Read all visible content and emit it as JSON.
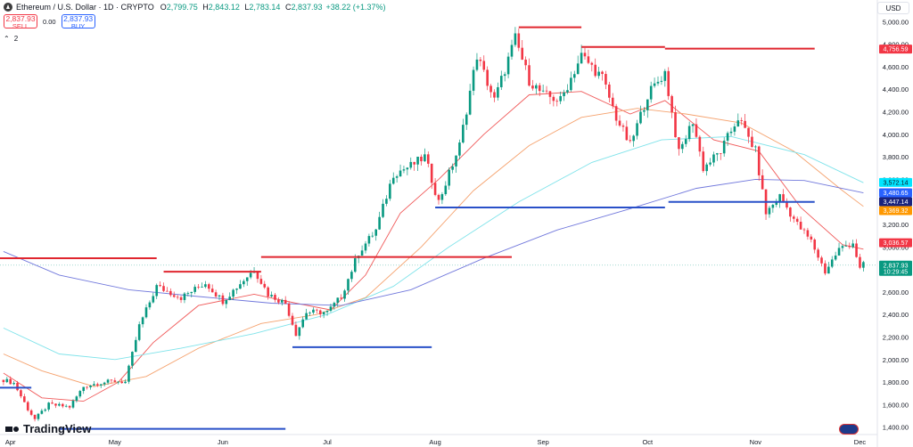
{
  "header": {
    "title": "Ethereum / U.S. Dollar · 1D · CRYPTO",
    "ohlc": [
      {
        "k": "O",
        "v": "2,799.75"
      },
      {
        "k": "H",
        "v": "2,843.12"
      },
      {
        "k": "L",
        "v": "2,783.14"
      },
      {
        "k": "C",
        "v": "2,837.93"
      }
    ],
    "change": "+38.22 (+1.37%)",
    "sell_price": "2,837.93",
    "sell_label": "SELL",
    "spread": "0.00",
    "buy_price": "2,837.93",
    "buy_label": "BUY",
    "indicators_count": "2",
    "currency": "USD"
  },
  "brand": "TradingView",
  "colors": {
    "up": "#089981",
    "down": "#f23645",
    "resistance": "#e0262f",
    "support": "#2950c8",
    "ma_red": "#f05a5a",
    "ma_orange": "#f5a26e",
    "ma_cyan": "#7fe3ea",
    "ma_blue": "#7178dc"
  },
  "chart_data": {
    "type": "candlestick",
    "symbol": "ETHUSD",
    "interval": "1D",
    "x_axis_labels": [
      "Apr",
      "May",
      "Jun",
      "Jul",
      "Aug",
      "Sep",
      "Oct",
      "Nov",
      "Dec"
    ],
    "y_axis_labels": [
      "1,400.00",
      "1,600.00",
      "1,800.00",
      "2,000.00",
      "2,200.00",
      "2,400.00",
      "2,600.00",
      "2,800.00",
      "3,000.00",
      "3,200.00",
      "3,400.00",
      "3,600.00",
      "3,800.00",
      "4,000.00",
      "4,200.00",
      "4,400.00",
      "4,600.00",
      "4,800.00",
      "5,000.00"
    ],
    "ylim": [
      1350,
      5050
    ],
    "close_path": [
      {
        "date": "2025-03-30",
        "close": 1820
      },
      {
        "date": "2025-04-02",
        "close": 1790
      },
      {
        "date": "2025-04-06",
        "close": 1560
      },
      {
        "date": "2025-04-08",
        "close": 1470
      },
      {
        "date": "2025-04-12",
        "close": 1600
      },
      {
        "date": "2025-04-18",
        "close": 1580
      },
      {
        "date": "2025-04-22",
        "close": 1760
      },
      {
        "date": "2025-04-26",
        "close": 1790
      },
      {
        "date": "2025-05-01",
        "close": 1810
      },
      {
        "date": "2025-05-04",
        "close": 1800
      },
      {
        "date": "2025-05-08",
        "close": 2300
      },
      {
        "date": "2025-05-13",
        "close": 2650
      },
      {
        "date": "2025-05-20",
        "close": 2550
      },
      {
        "date": "2025-05-27",
        "close": 2680
      },
      {
        "date": "2025-06-01",
        "close": 2520
      },
      {
        "date": "2025-06-10",
        "close": 2800
      },
      {
        "date": "2025-06-14",
        "close": 2580
      },
      {
        "date": "2025-06-19",
        "close": 2500
      },
      {
        "date": "2025-06-22",
        "close": 2230
      },
      {
        "date": "2025-06-25",
        "close": 2420
      },
      {
        "date": "2025-07-01",
        "close": 2420
      },
      {
        "date": "2025-07-05",
        "close": 2560
      },
      {
        "date": "2025-07-10",
        "close": 2950
      },
      {
        "date": "2025-07-15",
        "close": 3150
      },
      {
        "date": "2025-07-20",
        "close": 3650
      },
      {
        "date": "2025-07-25",
        "close": 3720
      },
      {
        "date": "2025-07-29",
        "close": 3800
      },
      {
        "date": "2025-08-02",
        "close": 3400
      },
      {
        "date": "2025-08-08",
        "close": 3900
      },
      {
        "date": "2025-08-13",
        "close": 4700
      },
      {
        "date": "2025-08-18",
        "close": 4300
      },
      {
        "date": "2025-08-24",
        "close": 4850
      },
      {
        "date": "2025-08-28",
        "close": 4480
      },
      {
        "date": "2025-09-01",
        "close": 4350
      },
      {
        "date": "2025-09-06",
        "close": 4300
      },
      {
        "date": "2025-09-12",
        "close": 4700
      },
      {
        "date": "2025-09-18",
        "close": 4500
      },
      {
        "date": "2025-09-22",
        "close": 4150
      },
      {
        "date": "2025-09-26",
        "close": 3900
      },
      {
        "date": "2025-10-01",
        "close": 4350
      },
      {
        "date": "2025-10-06",
        "close": 4550
      },
      {
        "date": "2025-10-10",
        "close": 3830
      },
      {
        "date": "2025-10-14",
        "close": 4120
      },
      {
        "date": "2025-10-17",
        "close": 3700
      },
      {
        "date": "2025-10-22",
        "close": 3850
      },
      {
        "date": "2025-10-27",
        "close": 4150
      },
      {
        "date": "2025-11-01",
        "close": 3850
      },
      {
        "date": "2025-11-04",
        "close": 3300
      },
      {
        "date": "2025-11-08",
        "close": 3450
      },
      {
        "date": "2025-11-13",
        "close": 3200
      },
      {
        "date": "2025-11-17",
        "close": 3050
      },
      {
        "date": "2025-11-21",
        "close": 2780
      },
      {
        "date": "2025-11-25",
        "close": 2980
      },
      {
        "date": "2025-11-29",
        "close": 3040
      },
      {
        "date": "2025-12-01",
        "close": 2800
      },
      {
        "date": "2025-12-02",
        "close": 2838
      }
    ],
    "moving_averages": [
      {
        "color": "#f05a5a",
        "points": [
          {
            "date": "2025-03-30",
            "value": 1880
          },
          {
            "date": "2025-04-10",
            "value": 1660
          },
          {
            "date": "2025-04-22",
            "value": 1630
          },
          {
            "date": "2025-05-02",
            "value": 1800
          },
          {
            "date": "2025-05-12",
            "value": 2150
          },
          {
            "date": "2025-05-25",
            "value": 2480
          },
          {
            "date": "2025-06-10",
            "value": 2580
          },
          {
            "date": "2025-06-22",
            "value": 2500
          },
          {
            "date": "2025-07-02",
            "value": 2440
          },
          {
            "date": "2025-07-12",
            "value": 2750
          },
          {
            "date": "2025-07-22",
            "value": 3300
          },
          {
            "date": "2025-08-02",
            "value": 3600
          },
          {
            "date": "2025-08-15",
            "value": 4000
          },
          {
            "date": "2025-08-28",
            "value": 4350
          },
          {
            "date": "2025-09-12",
            "value": 4380
          },
          {
            "date": "2025-09-26",
            "value": 4180
          },
          {
            "date": "2025-10-06",
            "value": 4300
          },
          {
            "date": "2025-10-20",
            "value": 3950
          },
          {
            "date": "2025-11-02",
            "value": 3850
          },
          {
            "date": "2025-11-14",
            "value": 3350
          },
          {
            "date": "2025-11-26",
            "value": 3020
          },
          {
            "date": "2025-12-02",
            "value": 2980
          }
        ]
      },
      {
        "color": "#f5a26e",
        "points": [
          {
            "date": "2025-03-30",
            "value": 2050
          },
          {
            "date": "2025-04-10",
            "value": 1900
          },
          {
            "date": "2025-04-25",
            "value": 1760
          },
          {
            "date": "2025-05-10",
            "value": 1850
          },
          {
            "date": "2025-05-25",
            "value": 2100
          },
          {
            "date": "2025-06-12",
            "value": 2320
          },
          {
            "date": "2025-06-28",
            "value": 2400
          },
          {
            "date": "2025-07-12",
            "value": 2550
          },
          {
            "date": "2025-07-28",
            "value": 3000
          },
          {
            "date": "2025-08-12",
            "value": 3500
          },
          {
            "date": "2025-08-28",
            "value": 3900
          },
          {
            "date": "2025-09-12",
            "value": 4150
          },
          {
            "date": "2025-09-28",
            "value": 4230
          },
          {
            "date": "2025-10-12",
            "value": 4180
          },
          {
            "date": "2025-10-28",
            "value": 4100
          },
          {
            "date": "2025-11-12",
            "value": 3850
          },
          {
            "date": "2025-11-26",
            "value": 3500
          },
          {
            "date": "2025-12-02",
            "value": 3360
          }
        ]
      },
      {
        "color": "#7fe3ea",
        "points": [
          {
            "date": "2025-03-30",
            "value": 2280
          },
          {
            "date": "2025-04-15",
            "value": 2050
          },
          {
            "date": "2025-05-01",
            "value": 2000
          },
          {
            "date": "2025-05-20",
            "value": 2100
          },
          {
            "date": "2025-06-10",
            "value": 2230
          },
          {
            "date": "2025-07-01",
            "value": 2400
          },
          {
            "date": "2025-07-20",
            "value": 2650
          },
          {
            "date": "2025-08-05",
            "value": 3000
          },
          {
            "date": "2025-08-25",
            "value": 3400
          },
          {
            "date": "2025-09-15",
            "value": 3750
          },
          {
            "date": "2025-10-05",
            "value": 3950
          },
          {
            "date": "2025-10-25",
            "value": 3980
          },
          {
            "date": "2025-11-15",
            "value": 3820
          },
          {
            "date": "2025-12-02",
            "value": 3570
          }
        ]
      },
      {
        "color": "#7178dc",
        "points": [
          {
            "date": "2025-03-30",
            "value": 2960
          },
          {
            "date": "2025-04-15",
            "value": 2750
          },
          {
            "date": "2025-05-05",
            "value": 2620
          },
          {
            "date": "2025-05-25",
            "value": 2560
          },
          {
            "date": "2025-06-15",
            "value": 2500
          },
          {
            "date": "2025-07-05",
            "value": 2480
          },
          {
            "date": "2025-07-25",
            "value": 2620
          },
          {
            "date": "2025-08-15",
            "value": 2900
          },
          {
            "date": "2025-09-05",
            "value": 3150
          },
          {
            "date": "2025-09-25",
            "value": 3330
          },
          {
            "date": "2025-10-15",
            "value": 3520
          },
          {
            "date": "2025-11-01",
            "value": 3600
          },
          {
            "date": "2025-11-15",
            "value": 3590
          },
          {
            "date": "2025-12-02",
            "value": 3480
          }
        ]
      }
    ],
    "level_lines": [
      {
        "kind": "resistance",
        "price": 2900,
        "from": "2025-03-29",
        "to": "2025-05-13"
      },
      {
        "kind": "resistance",
        "price": 2780,
        "from": "2025-05-15",
        "to": "2025-06-12"
      },
      {
        "kind": "resistance",
        "price": 2910,
        "from": "2025-06-12",
        "to": "2025-08-23"
      },
      {
        "kind": "resistance",
        "price": 4950,
        "from": "2025-08-25",
        "to": "2025-09-12"
      },
      {
        "kind": "resistance",
        "price": 4775,
        "from": "2025-09-12",
        "to": "2025-10-06"
      },
      {
        "kind": "resistance",
        "price": 4760,
        "from": "2025-10-06",
        "to": "2025-11-18"
      },
      {
        "kind": "support",
        "price": 1750,
        "from": "2025-03-29",
        "to": "2025-04-07"
      },
      {
        "kind": "support",
        "price": 1385,
        "from": "2025-04-15",
        "to": "2025-06-19"
      },
      {
        "kind": "support",
        "price": 2110,
        "from": "2025-06-21",
        "to": "2025-07-31"
      },
      {
        "kind": "support",
        "price": 3350,
        "from": "2025-08-01",
        "to": "2025-10-06"
      },
      {
        "kind": "support",
        "price": 3400,
        "from": "2025-10-07",
        "to": "2025-11-18"
      }
    ],
    "price_tags": [
      {
        "label": "4,756.59",
        "value": 4756.59,
        "color": "#f23645"
      },
      {
        "label": "3,572.14",
        "value": 3572.14,
        "color": "#00e5ff"
      },
      {
        "label": "3,480.65",
        "value": 3480.65,
        "color": "#2962ff"
      },
      {
        "label": "3,447.14",
        "value": 3447.14,
        "color": "#1a237e"
      },
      {
        "label": "3,369.32",
        "value": 3369.32,
        "color": "#ff9800"
      },
      {
        "label": "3,036.57",
        "value": 3036.57,
        "color": "#f23645"
      },
      {
        "label": "2,837.93",
        "value": 2837.93,
        "color": "#089981",
        "sub": "10:29:45"
      }
    ]
  }
}
